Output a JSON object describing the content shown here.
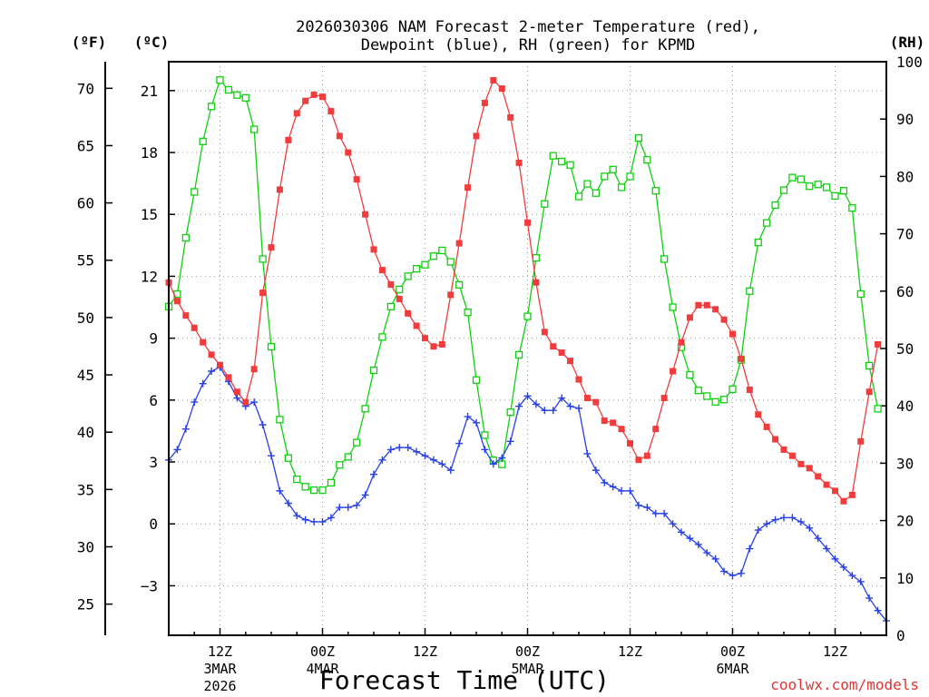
{
  "chart_data": {
    "type": "line",
    "title_line1": "2026030306 NAM Forecast 2-meter Temperature (red),",
    "title_line2": "Dewpoint (blue), RH (green) for KPMD",
    "xlabel": "Forecast Time (UTC)",
    "credit": "coolwx.com/models",
    "unit_f": "(ºF)",
    "unit_c": "(ºC)",
    "unit_rh": "(RH)",
    "grid": true,
    "x_unit": "forecast hour from 2026-03-03 06Z",
    "xlim": [
      0,
      84
    ],
    "ylim_c": [
      -5.4,
      22.4
    ],
    "ylim_rh": [
      0,
      100
    ],
    "ylim_f": [
      22.28,
      72.32
    ],
    "c_ticks": [
      "21",
      "18",
      "15",
      "12",
      "9",
      "6",
      "3",
      "0",
      "−3"
    ],
    "f_ticks": [
      "70",
      "65",
      "60",
      "55",
      "50",
      "45",
      "40",
      "35",
      "30",
      "25"
    ],
    "rh_ticks": [
      "100",
      "90",
      "80",
      "70",
      "60",
      "50",
      "40",
      "30",
      "20",
      "10",
      "0"
    ],
    "x_ticks": [
      {
        "hour": 6,
        "label": "12Z",
        "date": "3MAR",
        "year": "2026"
      },
      {
        "hour": 18,
        "label": "00Z",
        "date": "4MAR",
        "year": ""
      },
      {
        "hour": 30,
        "label": "12Z",
        "date": "",
        "year": ""
      },
      {
        "hour": 42,
        "label": "00Z",
        "date": "5MAR",
        "year": ""
      },
      {
        "hour": 54,
        "label": "12Z",
        "date": "",
        "year": ""
      },
      {
        "hour": 66,
        "label": "00Z",
        "date": "6MAR",
        "year": ""
      },
      {
        "hour": 78,
        "label": "12Z",
        "date": "",
        "year": ""
      }
    ],
    "series": [
      {
        "name": "2-meter Temperature",
        "units": "°C",
        "color": "#f03c3c",
        "marker": "filled-square",
        "values": [
          [
            0,
            11.7
          ],
          [
            1,
            10.8
          ],
          [
            2,
            10.1
          ],
          [
            3,
            9.5
          ],
          [
            4,
            8.8
          ],
          [
            5,
            8.2
          ],
          [
            6,
            7.7
          ],
          [
            7,
            7.1
          ],
          [
            8,
            6.4
          ],
          [
            9,
            5.9
          ],
          [
            10,
            7.5
          ],
          [
            11,
            11.2
          ],
          [
            12,
            13.4
          ],
          [
            13,
            16.2
          ],
          [
            14,
            18.6
          ],
          [
            15,
            19.9
          ],
          [
            16,
            20.5
          ],
          [
            17,
            20.8
          ],
          [
            18,
            20.7
          ],
          [
            19,
            20.0
          ],
          [
            20,
            18.8
          ],
          [
            21,
            18.0
          ],
          [
            22,
            16.7
          ],
          [
            23,
            15.0
          ],
          [
            24,
            13.3
          ],
          [
            25,
            12.3
          ],
          [
            26,
            11.6
          ],
          [
            27,
            10.9
          ],
          [
            28,
            10.2
          ],
          [
            29,
            9.6
          ],
          [
            30,
            9.0
          ],
          [
            31,
            8.6
          ],
          [
            32,
            8.7
          ],
          [
            33,
            11.1
          ],
          [
            34,
            13.6
          ],
          [
            35,
            16.3
          ],
          [
            36,
            18.8
          ],
          [
            37,
            20.4
          ],
          [
            38,
            21.5
          ],
          [
            39,
            21.1
          ],
          [
            40,
            19.7
          ],
          [
            41,
            17.5
          ],
          [
            42,
            14.6
          ],
          [
            43,
            11.7
          ],
          [
            44,
            9.3
          ],
          [
            45,
            8.6
          ],
          [
            46,
            8.3
          ],
          [
            47,
            7.9
          ],
          [
            48,
            7.0
          ],
          [
            49,
            6.1
          ],
          [
            50,
            5.9
          ],
          [
            51,
            5.0
          ],
          [
            52,
            4.9
          ],
          [
            53,
            4.6
          ],
          [
            54,
            3.9
          ],
          [
            55,
            3.1
          ],
          [
            56,
            3.3
          ],
          [
            57,
            4.6
          ],
          [
            58,
            6.1
          ],
          [
            59,
            7.4
          ],
          [
            60,
            8.8
          ],
          [
            61,
            10.0
          ],
          [
            62,
            10.6
          ],
          [
            63,
            10.6
          ],
          [
            64,
            10.4
          ],
          [
            65,
            9.9
          ],
          [
            66,
            9.2
          ],
          [
            67,
            8.0
          ],
          [
            68,
            6.5
          ],
          [
            69,
            5.3
          ],
          [
            70,
            4.7
          ],
          [
            71,
            4.1
          ],
          [
            72,
            3.6
          ],
          [
            73,
            3.3
          ],
          [
            74,
            2.9
          ],
          [
            75,
            2.7
          ],
          [
            76,
            2.3
          ],
          [
            77,
            1.9
          ],
          [
            78,
            1.6
          ],
          [
            79,
            1.1
          ],
          [
            80,
            1.4
          ],
          [
            81,
            4.0
          ],
          [
            82,
            6.4
          ],
          [
            83,
            8.7
          ]
        ]
      },
      {
        "name": "Dewpoint",
        "units": "°C",
        "color": "#2840e8",
        "marker": "plus",
        "values": [
          [
            0,
            3.1
          ],
          [
            1,
            3.6
          ],
          [
            2,
            4.6
          ],
          [
            3,
            5.9
          ],
          [
            4,
            6.8
          ],
          [
            5,
            7.4
          ],
          [
            6,
            7.6
          ],
          [
            7,
            6.9
          ],
          [
            8,
            6.1
          ],
          [
            9,
            5.7
          ],
          [
            10,
            5.9
          ],
          [
            11,
            4.8
          ],
          [
            12,
            3.3
          ],
          [
            13,
            1.6
          ],
          [
            14,
            1.0
          ],
          [
            15,
            0.4
          ],
          [
            16,
            0.2
          ],
          [
            17,
            0.1
          ],
          [
            18,
            0.1
          ],
          [
            19,
            0.3
          ],
          [
            20,
            0.8
          ],
          [
            21,
            0.8
          ],
          [
            22,
            0.9
          ],
          [
            23,
            1.4
          ],
          [
            24,
            2.4
          ],
          [
            25,
            3.1
          ],
          [
            26,
            3.6
          ],
          [
            27,
            3.7
          ],
          [
            28,
            3.7
          ],
          [
            29,
            3.5
          ],
          [
            30,
            3.3
          ],
          [
            31,
            3.1
          ],
          [
            32,
            2.9
          ],
          [
            33,
            2.6
          ],
          [
            34,
            3.9
          ],
          [
            35,
            5.2
          ],
          [
            36,
            4.9
          ],
          [
            37,
            3.6
          ],
          [
            38,
            2.9
          ],
          [
            39,
            3.2
          ],
          [
            40,
            4.0
          ],
          [
            41,
            5.7
          ],
          [
            42,
            6.2
          ],
          [
            43,
            5.8
          ],
          [
            44,
            5.5
          ],
          [
            45,
            5.5
          ],
          [
            46,
            6.1
          ],
          [
            47,
            5.7
          ],
          [
            48,
            5.6
          ],
          [
            49,
            3.4
          ],
          [
            50,
            2.6
          ],
          [
            51,
            2.0
          ],
          [
            52,
            1.8
          ],
          [
            53,
            1.6
          ],
          [
            54,
            1.6
          ],
          [
            55,
            0.9
          ],
          [
            56,
            0.8
          ],
          [
            57,
            0.5
          ],
          [
            58,
            0.5
          ],
          [
            59,
            0.0
          ],
          [
            60,
            -0.4
          ],
          [
            61,
            -0.7
          ],
          [
            62,
            -1.0
          ],
          [
            63,
            -1.4
          ],
          [
            64,
            -1.7
          ],
          [
            65,
            -2.3
          ],
          [
            66,
            -2.5
          ],
          [
            67,
            -2.4
          ],
          [
            68,
            -1.2
          ],
          [
            69,
            -0.3
          ],
          [
            70,
            0.0
          ],
          [
            71,
            0.2
          ],
          [
            72,
            0.3
          ],
          [
            73,
            0.3
          ],
          [
            74,
            0.1
          ],
          [
            75,
            -0.2
          ],
          [
            76,
            -0.7
          ],
          [
            77,
            -1.2
          ],
          [
            78,
            -1.7
          ],
          [
            79,
            -2.1
          ],
          [
            80,
            -2.5
          ],
          [
            81,
            -2.8
          ],
          [
            82,
            -3.6
          ],
          [
            83,
            -4.2
          ],
          [
            84,
            -4.7
          ]
        ]
      },
      {
        "name": "RH",
        "units": "%",
        "color": "#10d010",
        "marker": "open-square",
        "values": [
          [
            0,
            57.3
          ],
          [
            1,
            59.5
          ],
          [
            2,
            69.3
          ],
          [
            3,
            77.3
          ],
          [
            4,
            86.1
          ],
          [
            5,
            92.2
          ],
          [
            6,
            96.8
          ],
          [
            7,
            95.1
          ],
          [
            8,
            94.2
          ],
          [
            9,
            93.7
          ],
          [
            10,
            88.2
          ],
          [
            11,
            65.6
          ],
          [
            12,
            50.3
          ],
          [
            13,
            37.6
          ],
          [
            14,
            30.9
          ],
          [
            15,
            27.2
          ],
          [
            16,
            25.9
          ],
          [
            17,
            25.3
          ],
          [
            18,
            25.3
          ],
          [
            19,
            26.6
          ],
          [
            20,
            29.7
          ],
          [
            21,
            31.1
          ],
          [
            22,
            33.6
          ],
          [
            23,
            39.5
          ],
          [
            24,
            46.2
          ],
          [
            25,
            52.0
          ],
          [
            26,
            57.3
          ],
          [
            27,
            60.3
          ],
          [
            28,
            62.6
          ],
          [
            29,
            63.9
          ],
          [
            30,
            64.6
          ],
          [
            31,
            66.1
          ],
          [
            32,
            67.1
          ],
          [
            33,
            65.1
          ],
          [
            34,
            61.1
          ],
          [
            35,
            56.3
          ],
          [
            36,
            44.5
          ],
          [
            37,
            34.9
          ],
          [
            38,
            30.5
          ],
          [
            39,
            29.8
          ],
          [
            40,
            38.9
          ],
          [
            41,
            48.9
          ],
          [
            42,
            55.6
          ],
          [
            43,
            65.8
          ],
          [
            44,
            75.2
          ],
          [
            45,
            83.6
          ],
          [
            46,
            82.6
          ],
          [
            47,
            82.0
          ],
          [
            48,
            76.5
          ],
          [
            49,
            78.7
          ],
          [
            50,
            77.1
          ],
          [
            51,
            80.0
          ],
          [
            52,
            81.2
          ],
          [
            53,
            78.1
          ],
          [
            54,
            80.0
          ],
          [
            55,
            86.7
          ],
          [
            56,
            82.9
          ],
          [
            57,
            77.5
          ],
          [
            58,
            65.6
          ],
          [
            59,
            57.2
          ],
          [
            60,
            50.2
          ],
          [
            61,
            45.4
          ],
          [
            62,
            42.7
          ],
          [
            63,
            41.7
          ],
          [
            64,
            40.7
          ],
          [
            65,
            41.1
          ],
          [
            66,
            42.9
          ],
          [
            67,
            48.0
          ],
          [
            68,
            60.0
          ],
          [
            69,
            68.5
          ],
          [
            70,
            71.9
          ],
          [
            71,
            75.0
          ],
          [
            72,
            77.6
          ],
          [
            73,
            79.8
          ],
          [
            74,
            79.5
          ],
          [
            75,
            78.3
          ],
          [
            76,
            78.6
          ],
          [
            77,
            78.1
          ],
          [
            78,
            76.6
          ],
          [
            79,
            77.5
          ],
          [
            80,
            74.5
          ],
          [
            81,
            59.5
          ],
          [
            82,
            47.0
          ],
          [
            83,
            39.5
          ]
        ]
      }
    ]
  }
}
